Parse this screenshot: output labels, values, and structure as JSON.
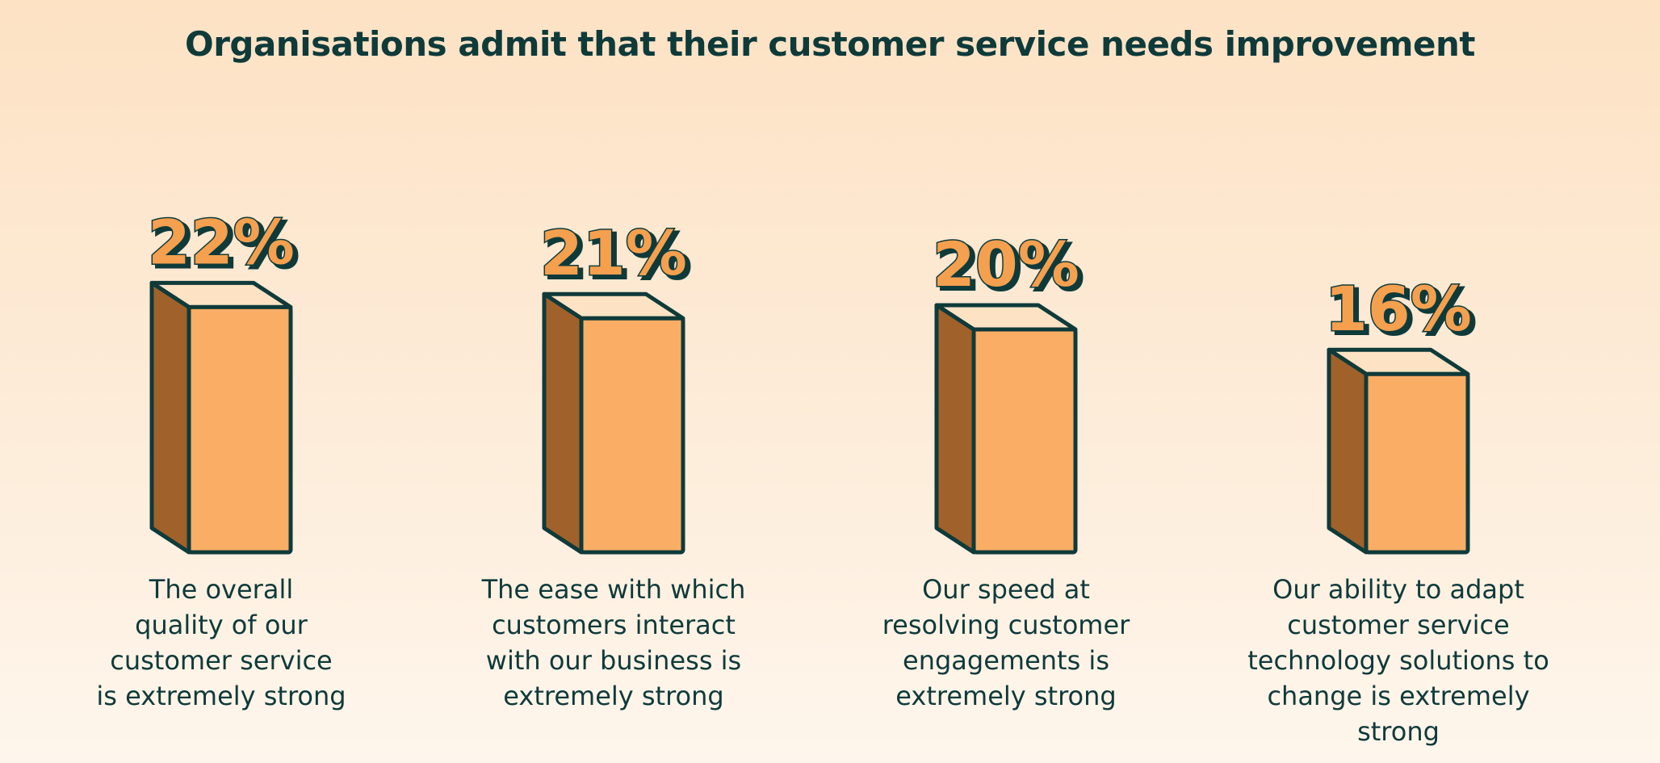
{
  "chart_data": {
    "type": "bar",
    "title": "Organisations admit that their customer service needs improvement",
    "categories": [
      "The overall\nquality of our\ncustomer service\nis extremely strong",
      "The ease with which\ncustomers interact\nwith our business is\nextremely strong",
      "Our speed at\nresolving customer\nengagements is\nextremely strong",
      "Our ability to adapt\ncustomer service\ntechnology solutions to\nchange is extremely strong"
    ],
    "values": [
      22,
      21,
      20,
      16
    ],
    "value_labels": [
      "22%",
      "21%",
      "20%",
      "16%"
    ],
    "unit": "%",
    "colors": {
      "bar_front": "#f9ad65",
      "bar_side": "#a0612a",
      "bar_top": "#fde3c4",
      "outline": "#0f3a3a",
      "label_fill": "#f4a04f",
      "text": "#0f3a3a"
    }
  }
}
